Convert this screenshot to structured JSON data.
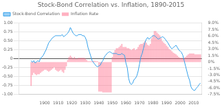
{
  "chart_data": {
    "type": "bar",
    "title": "Stock-Bond Correlation vs. Inflation, 1890-2015",
    "x": [
      1890,
      1891,
      1892,
      1893,
      1894,
      1895,
      1896,
      1897,
      1898,
      1899,
      1900,
      1901,
      1902,
      1903,
      1904,
      1905,
      1906,
      1907,
      1908,
      1909,
      1910,
      1911,
      1912,
      1913,
      1914,
      1915,
      1916,
      1917,
      1918,
      1919,
      1920,
      1921,
      1922,
      1923,
      1924,
      1925,
      1926,
      1927,
      1928,
      1929,
      1930,
      1931,
      1932,
      1933,
      1934,
      1935,
      1936,
      1937,
      1938,
      1939,
      1940,
      1941,
      1942,
      1943,
      1944,
      1945,
      1946,
      1947,
      1948,
      1949,
      1950,
      1951,
      1952,
      1953,
      1954,
      1955,
      1956,
      1957,
      1958,
      1959,
      1960,
      1961,
      1962,
      1963,
      1964,
      1965,
      1966,
      1967,
      1968,
      1969,
      1970,
      1971,
      1972,
      1973,
      1974,
      1975,
      1976,
      1977,
      1978,
      1979,
      1980,
      1981,
      1982,
      1983,
      1984,
      1985,
      1986,
      1987,
      1988,
      1989,
      1990,
      1991,
      1992,
      1993,
      1994,
      1995,
      1996,
      1997,
      1998,
      1999,
      2000,
      2001,
      2002,
      2003,
      2004,
      2005,
      2006,
      2007,
      2008,
      2009,
      2010,
      2011,
      2012,
      2013,
      2014,
      2015
    ],
    "series": [
      {
        "name": "Stock-Bond Correlation",
        "type": "line",
        "axis": "y",
        "values": [
          -0.05,
          -0.1,
          -0.05,
          -0.12,
          -0.08,
          -0.05,
          -0.08,
          0.02,
          0.05,
          0.1,
          0.18,
          0.25,
          0.35,
          0.45,
          0.5,
          0.55,
          0.6,
          0.62,
          0.65,
          0.65,
          0.65,
          0.65,
          0.65,
          0.68,
          0.62,
          0.65,
          0.68,
          0.72,
          0.78,
          0.88,
          0.8,
          0.72,
          0.68,
          0.65,
          0.65,
          0.68,
          0.68,
          0.68,
          0.65,
          0.65,
          0.6,
          0.5,
          0.32,
          0.2,
          0.08,
          -0.05,
          -0.1,
          -0.15,
          -0.2,
          -0.22,
          -0.2,
          -0.18,
          -0.1,
          -0.05,
          0.05,
          0.1,
          0.15,
          0.18,
          0.2,
          0.18,
          0.15,
          0.15,
          0.15,
          0.15,
          0.12,
          0.12,
          0.12,
          0.15,
          0.12,
          0.1,
          -0.12,
          -0.25,
          -0.55,
          -0.68,
          -0.72,
          -0.68,
          -0.58,
          -0.55,
          -0.48,
          -0.35,
          -0.15,
          0.05,
          0.15,
          0.3,
          0.45,
          0.55,
          0.6,
          0.55,
          0.58,
          0.62,
          0.65,
          0.65,
          0.62,
          0.58,
          0.55,
          0.58,
          0.6,
          0.62,
          0.6,
          0.55,
          0.5,
          0.45,
          0.38,
          0.32,
          0.28,
          0.32,
          0.35,
          0.38,
          0.32,
          0.25,
          0.22,
          0.18,
          0.1,
          -0.05,
          -0.2,
          -0.35,
          -0.5,
          -0.6,
          -0.78,
          -0.85,
          -0.88,
          -0.88,
          -0.82,
          -0.78,
          -0.72,
          -0.68
        ]
      },
      {
        "name": "Inflation Rate",
        "type": "bar",
        "axis": "y2",
        "values": [
          -5.5,
          -3.0,
          -2.5,
          -2.8,
          -3.0,
          -2.8,
          -2.8,
          -2.5,
          -2.2,
          -2.0,
          -1.8,
          -1.8,
          -2.0,
          -2.2,
          -2.0,
          -1.8,
          -1.5,
          -1.2,
          -1.8,
          -2.0,
          -2.2,
          -2.0,
          -1.8,
          -2.2,
          -2.5,
          -1.8,
          -1.0,
          0.5,
          1.2,
          1.5,
          1.2,
          0.8,
          1.2,
          0.8,
          0.8,
          1.0,
          1.0,
          1.0,
          1.0,
          1.0,
          0.8,
          0.5,
          0.2,
          0.2,
          0.2,
          0.2,
          0.3,
          0.3,
          0.2,
          0.2,
          -6.8,
          -6.8,
          -6.8,
          -7.0,
          -7.0,
          -7.0,
          -7.0,
          -7.0,
          -7.0,
          -7.0,
          1.2,
          2.2,
          2.8,
          3.2,
          3.2,
          3.5,
          3.8,
          4.2,
          3.5,
          3.5,
          3.5,
          3.2,
          3.2,
          3.0,
          2.8,
          3.0,
          3.2,
          2.8,
          3.0,
          3.5,
          4.0,
          4.2,
          4.2,
          4.5,
          4.8,
          4.5,
          4.0,
          3.8,
          4.2,
          5.5,
          6.2,
          7.2,
          7.2,
          6.8,
          6.5,
          6.2,
          5.5,
          4.8,
          4.5,
          4.2,
          3.8,
          3.5,
          3.0,
          2.8,
          2.5,
          2.2,
          2.0,
          1.8,
          1.5,
          1.2,
          1.0,
          1.0,
          0.8,
          1.0,
          1.2,
          1.5,
          1.8,
          2.0,
          2.0,
          2.0,
          2.0,
          1.8,
          1.8,
          1.8,
          1.8,
          1.8
        ]
      }
    ],
    "xlim": [
      1881,
      2016
    ],
    "xticks": [
      1900,
      1910,
      1920,
      1930,
      1940,
      1950,
      1960,
      1970,
      1980,
      1990,
      2000,
      2010
    ],
    "ylim": [
      -1.0,
      1.0
    ],
    "yticks": [
      {
        "value": -1.0,
        "label": "-1.00"
      },
      -0.75,
      {
        "value": -0.5,
        "label": "-0.50"
      },
      -0.25,
      0,
      0.25,
      {
        "value": 0.5,
        "label": "0.50"
      },
      0.75,
      {
        "value": 1.0,
        "label": "1.00"
      }
    ],
    "y2lim": [
      -7.5,
      9.0
    ],
    "y2ticks": [
      {
        "value": -7.5,
        "label": "-7.5%"
      },
      {
        "value": -6.0,
        "label": "-6.0%"
      },
      {
        "value": -4.5,
        "label": "-4.5%"
      },
      {
        "value": -3.0,
        "label": "-3.0%"
      },
      {
        "value": -1.5,
        "label": "-1.5%"
      },
      {
        "value": 0,
        "label": "0%"
      },
      {
        "value": 1.5,
        "label": "1.5%"
      },
      {
        "value": 3.0,
        "label": "3.0%"
      },
      {
        "value": 4.5,
        "label": "4.5%"
      },
      {
        "value": 6.0,
        "label": "6.0%"
      },
      {
        "value": 7.5,
        "label": "7.5%"
      },
      {
        "value": 9.0,
        "label": "9.0%"
      }
    ],
    "grid": "y",
    "legend": "upper left"
  }
}
